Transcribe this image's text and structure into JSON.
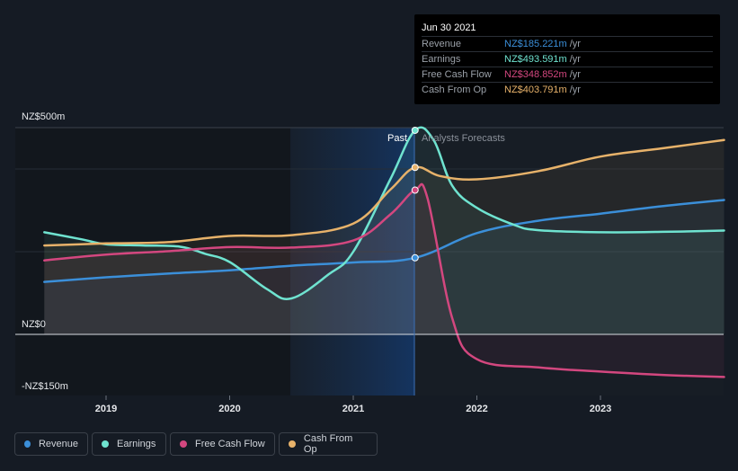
{
  "chart_data": {
    "type": "line",
    "x_ticks": [
      "2019",
      "2020",
      "2021",
      "2022",
      "2023"
    ],
    "y_labels": [
      "NZ$500m",
      "NZ$0",
      "-NZ$150m"
    ],
    "ylim": [
      -150,
      500
    ],
    "past_label": "Past",
    "forecast_label": "Analysts Forecasts",
    "series": [
      {
        "name": "Revenue",
        "color": "#3b8fd9",
        "points": [
          [
            2018.5,
            127
          ],
          [
            2019.0,
            138
          ],
          [
            2019.5,
            147
          ],
          [
            2020.0,
            155
          ],
          [
            2020.5,
            166
          ],
          [
            2021.0,
            174
          ],
          [
            2021.5,
            185.221
          ],
          [
            2022.0,
            245
          ],
          [
            2022.5,
            275
          ],
          [
            2023.0,
            292
          ],
          [
            2023.5,
            310
          ],
          [
            2024.0,
            325
          ]
        ]
      },
      {
        "name": "Earnings",
        "color": "#6fe3d0",
        "points": [
          [
            2018.5,
            247
          ],
          [
            2018.8,
            230
          ],
          [
            2019.0,
            218
          ],
          [
            2019.3,
            215
          ],
          [
            2019.6,
            212
          ],
          [
            2019.8,
            195
          ],
          [
            2020.0,
            175
          ],
          [
            2020.3,
            110
          ],
          [
            2020.5,
            87
          ],
          [
            2020.8,
            145
          ],
          [
            2021.0,
            200
          ],
          [
            2021.3,
            375
          ],
          [
            2021.5,
            493.591
          ],
          [
            2021.65,
            470
          ],
          [
            2021.8,
            360
          ],
          [
            2022.0,
            306
          ],
          [
            2022.3,
            265
          ],
          [
            2022.5,
            252
          ],
          [
            2023.0,
            247
          ],
          [
            2023.5,
            248
          ],
          [
            2024.0,
            251
          ]
        ]
      },
      {
        "name": "Free Cash Flow",
        "color": "#d3477f",
        "points": [
          [
            2018.5,
            179
          ],
          [
            2019.0,
            193
          ],
          [
            2019.5,
            201
          ],
          [
            2020.0,
            211
          ],
          [
            2020.5,
            210
          ],
          [
            2021.0,
            227
          ],
          [
            2021.3,
            290
          ],
          [
            2021.5,
            348.852
          ],
          [
            2021.6,
            330
          ],
          [
            2021.8,
            40
          ],
          [
            2022.0,
            -60
          ],
          [
            2022.5,
            -80
          ],
          [
            2023.0,
            -90
          ],
          [
            2023.5,
            -98
          ],
          [
            2024.0,
            -103
          ]
        ]
      },
      {
        "name": "Cash From Op",
        "color": "#e7b26a",
        "points": [
          [
            2018.5,
            215
          ],
          [
            2019.0,
            220
          ],
          [
            2019.5,
            223
          ],
          [
            2020.0,
            238
          ],
          [
            2020.5,
            240
          ],
          [
            2021.0,
            268
          ],
          [
            2021.3,
            350
          ],
          [
            2021.5,
            403.791
          ],
          [
            2021.7,
            383
          ],
          [
            2022.0,
            375
          ],
          [
            2022.5,
            395
          ],
          [
            2023.0,
            430
          ],
          [
            2023.5,
            450
          ],
          [
            2024.0,
            470
          ]
        ]
      }
    ]
  },
  "tooltip": {
    "date": "Jun 30 2021",
    "unit": "/yr",
    "rows": [
      {
        "label": "Revenue",
        "value": "NZ$185.221m",
        "color": "#3b8fd9"
      },
      {
        "label": "Earnings",
        "value": "NZ$493.591m",
        "color": "#6fe3d0"
      },
      {
        "label": "Free Cash Flow",
        "value": "NZ$348.852m",
        "color": "#d3477f"
      },
      {
        "label": "Cash From Op",
        "value": "NZ$403.791m",
        "color": "#e7b26a"
      }
    ]
  },
  "legend": [
    {
      "label": "Revenue",
      "color": "#3b8fd9"
    },
    {
      "label": "Earnings",
      "color": "#6fe3d0"
    },
    {
      "label": "Free Cash Flow",
      "color": "#d3477f"
    },
    {
      "label": "Cash From Op",
      "color": "#e7b26a"
    }
  ]
}
